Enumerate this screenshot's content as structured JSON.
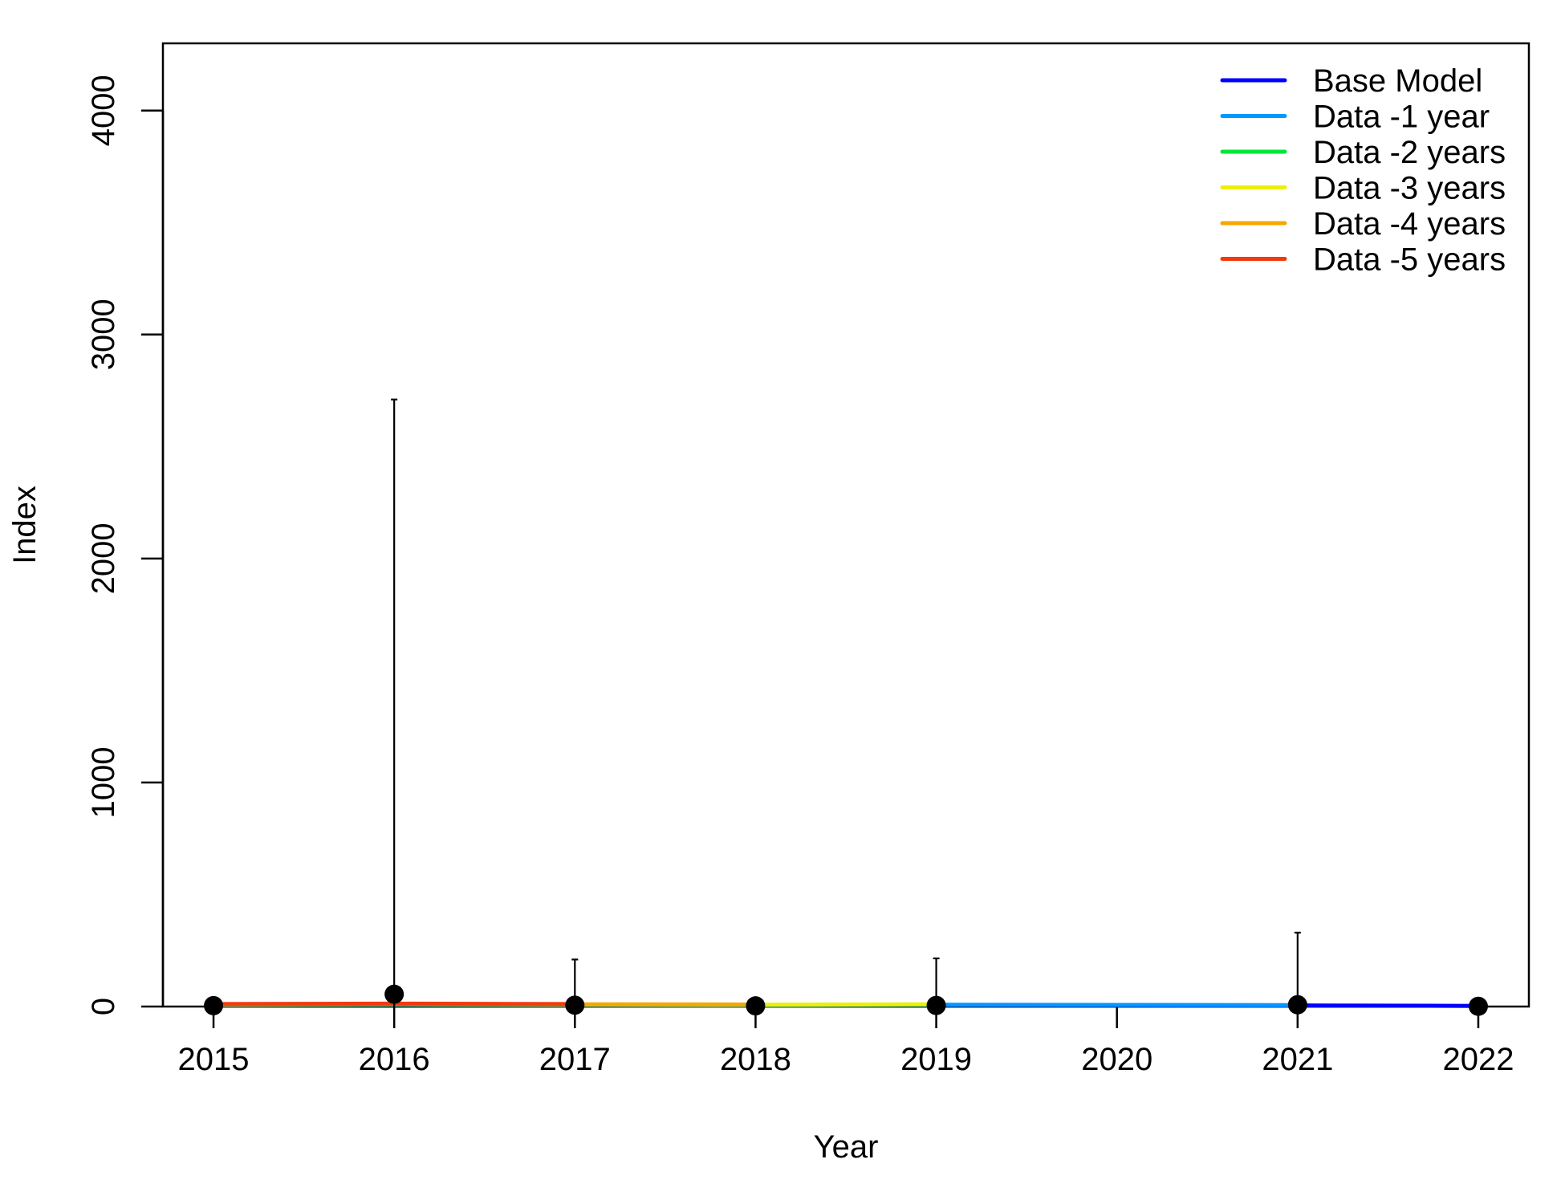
{
  "chart_data": {
    "type": "line",
    "title": "",
    "xlabel": "Year",
    "ylabel": "Index",
    "xlim": [
      2014.72,
      2022.28
    ],
    "ylim": [
      0,
      4300
    ],
    "x_ticks": [
      2015,
      2016,
      2017,
      2018,
      2019,
      2020,
      2021,
      2022
    ],
    "y_ticks": [
      0,
      1000,
      2000,
      3000,
      4000
    ],
    "grid": false,
    "legend": {
      "position": "top-right"
    },
    "series": [
      {
        "name": "Base Model",
        "color": "#0000FF",
        "x": [
          2015,
          2016,
          2017,
          2018,
          2019,
          2020,
          2021,
          2022
        ],
        "y": [
          6,
          8,
          6,
          5,
          7,
          6,
          5,
          3
        ]
      },
      {
        "name": "Data -1 year",
        "color": "#0099FF",
        "x": [
          2015,
          2016,
          2017,
          2018,
          2019,
          2020,
          2021
        ],
        "y": [
          7,
          9,
          7,
          6,
          8,
          7,
          6
        ]
      },
      {
        "name": "Data -2 years",
        "color": "#00E639",
        "x": [
          2015,
          2016,
          2017,
          2018,
          2019
        ],
        "y": [
          8,
          10,
          8,
          7,
          9
        ]
      },
      {
        "name": "Data -3 years",
        "color": "#EEF000",
        "x": [
          2015,
          2016,
          2017,
          2018,
          2019
        ],
        "y": [
          9,
          11,
          9,
          8,
          10
        ]
      },
      {
        "name": "Data -4 years",
        "color": "#F5A800",
        "x": [
          2015,
          2016,
          2017,
          2018
        ],
        "y": [
          10,
          12,
          10,
          9
        ]
      },
      {
        "name": "Data -5 years",
        "color": "#F23A0F",
        "x": [
          2015,
          2016,
          2017
        ],
        "y": [
          11,
          13,
          11
        ]
      }
    ],
    "observed": {
      "color": "#000000",
      "x": [
        2015,
        2016,
        2017,
        2018,
        2019,
        2021,
        2022
      ],
      "y": [
        4,
        55,
        6,
        3,
        5,
        8,
        1
      ],
      "upper": [
        10,
        2710,
        210,
        6,
        215,
        330,
        4
      ]
    }
  }
}
